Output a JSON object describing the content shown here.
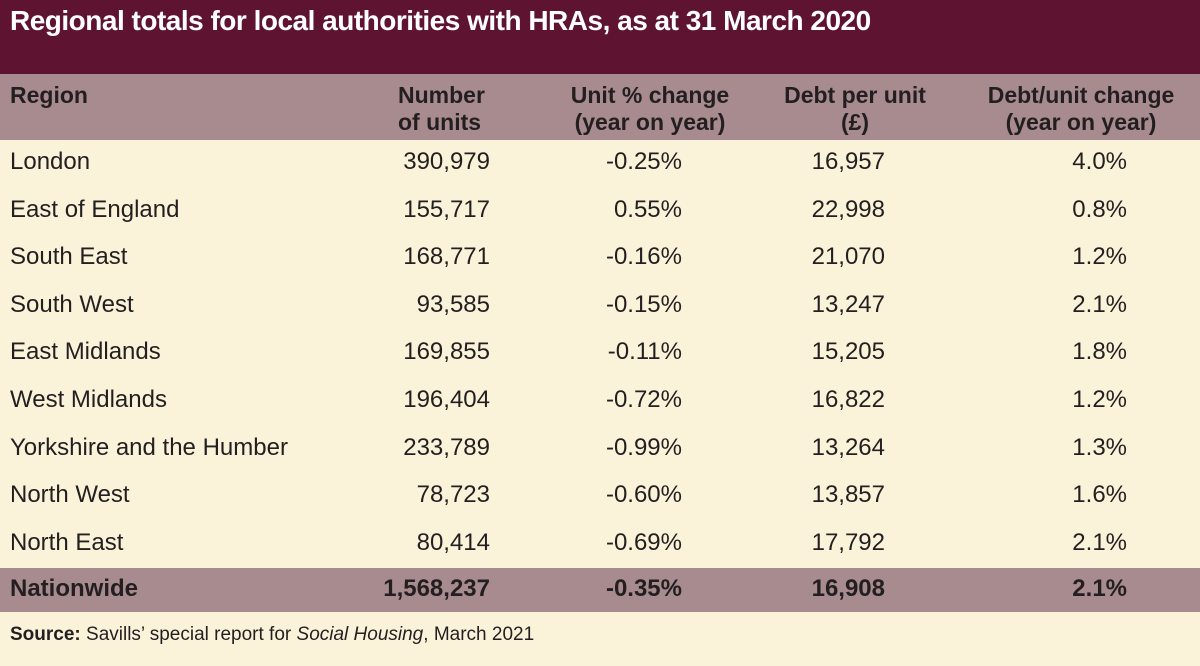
{
  "chart_data": {
    "type": "table",
    "title": "Regional totals for local authorities with HRAs, as at 31 March 2020",
    "columns": [
      [
        "Number",
        "of units"
      ],
      [
        "Unit % change",
        "(year on year)"
      ],
      [
        "Debt per unit",
        "(£)"
      ],
      [
        "Debt/unit change",
        "(year on year)"
      ]
    ],
    "region_header": "Region",
    "rows": [
      {
        "region": "London",
        "units": "390,979",
        "unit_change": "-0.25%",
        "debt_per_unit": "16,957",
        "debt_change": "4.0%"
      },
      {
        "region": "East of England",
        "units": "155,717",
        "unit_change": "0.55%",
        "debt_per_unit": "22,998",
        "debt_change": "0.8%"
      },
      {
        "region": "South East",
        "units": "168,771",
        "unit_change": "-0.16%",
        "debt_per_unit": "21,070",
        "debt_change": "1.2%"
      },
      {
        "region": "South West",
        "units": "93,585",
        "unit_change": "-0.15%",
        "debt_per_unit": "13,247",
        "debt_change": "2.1%"
      },
      {
        "region": "East Midlands",
        "units": "169,855",
        "unit_change": "-0.11%",
        "debt_per_unit": "15,205",
        "debt_change": "1.8%"
      },
      {
        "region": "West Midlands",
        "units": "196,404",
        "unit_change": "-0.72%",
        "debt_per_unit": "16,822",
        "debt_change": "1.2%"
      },
      {
        "region": "Yorkshire and the Humber",
        "units": "233,789",
        "unit_change": "-0.99%",
        "debt_per_unit": "13,264",
        "debt_change": "1.3%"
      },
      {
        "region": "North West",
        "units": "78,723",
        "unit_change": "-0.60%",
        "debt_per_unit": "13,857",
        "debt_change": "1.6%"
      },
      {
        "region": "North East",
        "units": "80,414",
        "unit_change": "-0.69%",
        "debt_per_unit": "17,792",
        "debt_change": "2.1%"
      }
    ],
    "total": {
      "region": "Nationwide",
      "units": "1,568,237",
      "unit_change": "-0.35%",
      "debt_per_unit": "16,908",
      "debt_change": "2.1%"
    }
  },
  "source": {
    "label": "Source:",
    "text_before": " Savills’ special report for ",
    "publication": "Social Housing",
    "text_after": ", March 2021"
  },
  "colors": {
    "title_background": "#5e1330",
    "header_background": "#a88b8e",
    "body_background": "#faf3d9",
    "title_text": "#ffffff"
  }
}
